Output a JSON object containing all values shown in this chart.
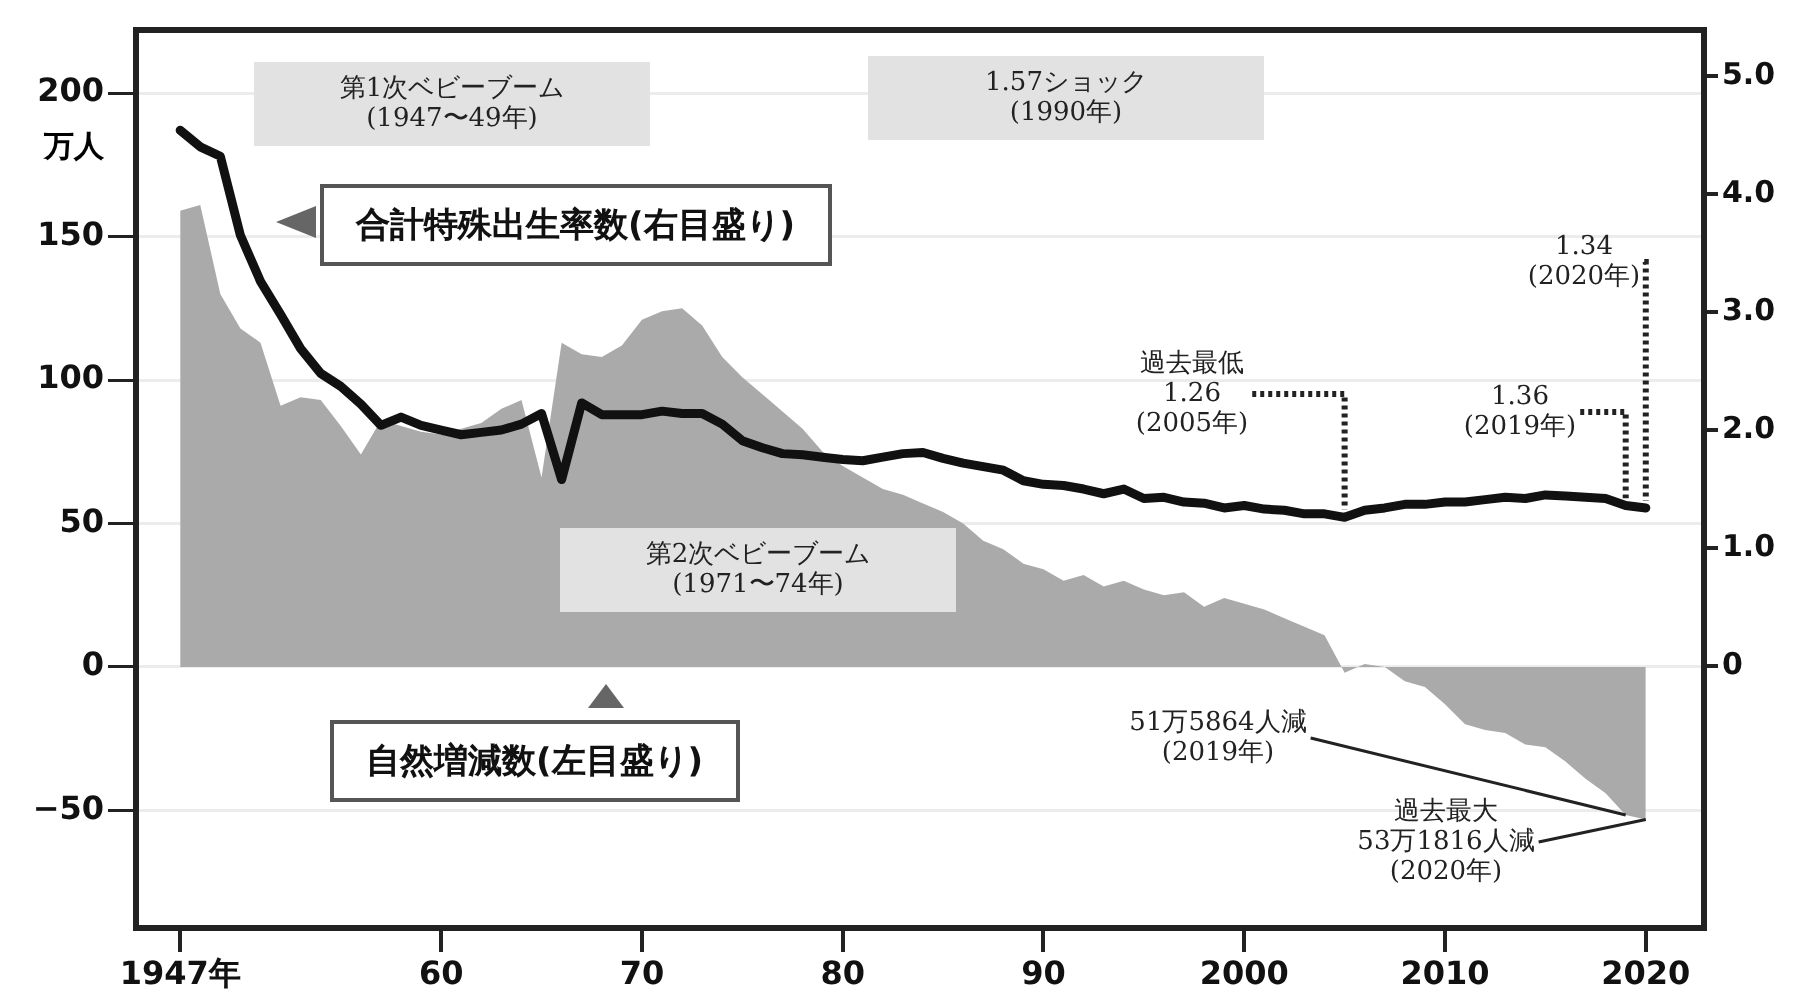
{
  "chart_data": {
    "type": "area",
    "ylabel": "万人",
    "x": [
      1947,
      1948,
      1949,
      1950,
      1951,
      1952,
      1953,
      1954,
      1955,
      1956,
      1957,
      1958,
      1959,
      1960,
      1961,
      1962,
      1963,
      1964,
      1965,
      1966,
      1967,
      1968,
      1969,
      1970,
      1971,
      1972,
      1973,
      1974,
      1975,
      1976,
      1977,
      1978,
      1979,
      1980,
      1981,
      1982,
      1983,
      1984,
      1985,
      1986,
      1987,
      1988,
      1989,
      1990,
      1991,
      1992,
      1993,
      1994,
      1995,
      1996,
      1997,
      1998,
      1999,
      2000,
      2001,
      2002,
      2003,
      2004,
      2005,
      2006,
      2007,
      2008,
      2009,
      2010,
      2011,
      2012,
      2013,
      2014,
      2015,
      2016,
      2017,
      2018,
      2019,
      2020
    ],
    "series": [
      {
        "name": "自然増減数(左目盛り)",
        "color": "#aaaaaa",
        "values": [
          159,
          161,
          130,
          118,
          113,
          91,
          94,
          93,
          84,
          74,
          86,
          84,
          82,
          81,
          83,
          85,
          90,
          93,
          66,
          113,
          109,
          108,
          112,
          121,
          124,
          125,
          119,
          108,
          101,
          95,
          89,
          83,
          75,
          70,
          66,
          62,
          60,
          57,
          54,
          50,
          44,
          41,
          36,
          34,
          30,
          32,
          28,
          30,
          27,
          25,
          26,
          21,
          24,
          22,
          20,
          17,
          14,
          11,
          -2,
          1,
          0,
          -5,
          -7,
          -13,
          -20,
          -22,
          -23,
          -27,
          -28,
          -33,
          -39,
          -44,
          -51.5864,
          -53.1816
        ]
      },
      {
        "name": "合計特殊出生率数(右目盛り)",
        "type": "line",
        "axis": "y2",
        "color": "#111111",
        "values": [
          4.54,
          4.4,
          4.32,
          3.65,
          3.26,
          2.98,
          2.69,
          2.48,
          2.37,
          2.22,
          2.04,
          2.11,
          2.04,
          2.0,
          1.96,
          1.98,
          2.0,
          2.05,
          2.14,
          1.58,
          2.23,
          2.13,
          2.13,
          2.13,
          2.16,
          2.14,
          2.14,
          2.05,
          1.91,
          1.85,
          1.8,
          1.79,
          1.77,
          1.75,
          1.74,
          1.77,
          1.8,
          1.81,
          1.76,
          1.72,
          1.69,
          1.66,
          1.57,
          1.54,
          1.53,
          1.5,
          1.46,
          1.5,
          1.42,
          1.43,
          1.39,
          1.38,
          1.34,
          1.36,
          1.33,
          1.32,
          1.29,
          1.29,
          1.26,
          1.32,
          1.34,
          1.37,
          1.37,
          1.39,
          1.39,
          1.41,
          1.43,
          1.42,
          1.45,
          1.44,
          1.43,
          1.42,
          1.36,
          1.34
        ]
      }
    ],
    "xlim": [
      1944.8,
      2022.9
    ],
    "xticks": [
      {
        "value": 1947,
        "label": "1947年"
      },
      {
        "value": 1960,
        "label": "60"
      },
      {
        "value": 1970,
        "label": "70"
      },
      {
        "value": 1980,
        "label": "80"
      },
      {
        "value": 1990,
        "label": "90"
      },
      2000,
      2010,
      2020
    ],
    "ylim": [
      -91,
      222
    ],
    "yticks": [
      {
        "value": -50,
        "label": "−50"
      },
      0,
      50,
      100,
      150,
      200
    ],
    "y2lim": [
      -2.22,
      5.39
    ],
    "y2ticks": [
      0,
      {
        "value": 1,
        "label": "1.0"
      },
      {
        "value": 2,
        "label": "2.0"
      },
      {
        "value": 3,
        "label": "3.0"
      },
      {
        "value": 4,
        "label": "4.0"
      },
      {
        "value": 5,
        "label": "5.0"
      }
    ],
    "grid": "y",
    "legend": false,
    "annotations": [
      "第1次ベビーブーム\n(1947〜49年)",
      "1.57ショック\n(1990年)",
      "第2次ベビーブーム\n(1971〜74年)",
      {
        "text": "過去最低\n1.26\n(2005年)",
        "x": 2005,
        "y": 52
      },
      {
        "text": "1.36\n(2019年)",
        "x": 2019,
        "y": 56
      },
      {
        "text": "1.34\n(2020年)",
        "x": 2020,
        "y": 55
      },
      {
        "text": "51万5864人減\n(2019年)",
        "x": 2019,
        "y": -51.5864
      },
      {
        "text": "過去最大\n53万1816人減\n(2020年)",
        "x": 2020,
        "y": -53.1816
      }
    ]
  }
}
